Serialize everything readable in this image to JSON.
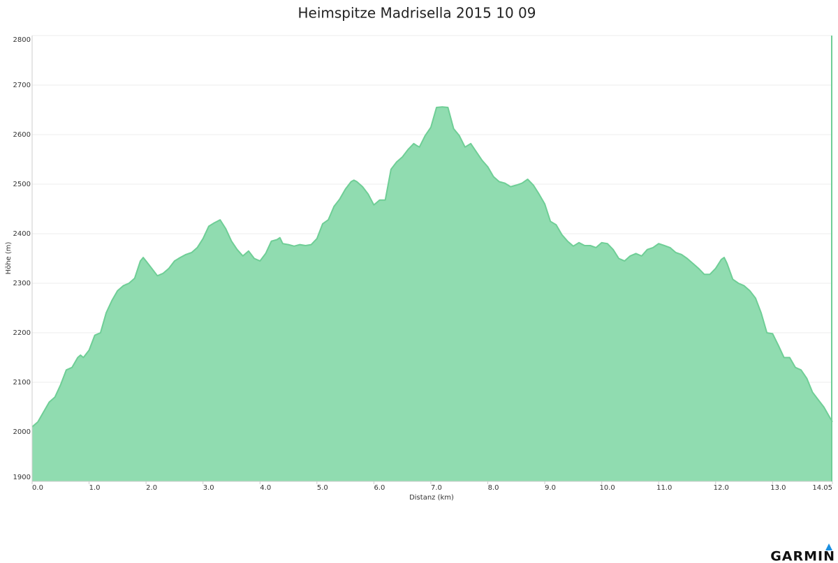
{
  "chart_data": {
    "type": "area",
    "title": "Heimspitze Madrisella 2015 10 09",
    "x_label": "Distanz   (km)",
    "y_label": "Höhe (m)",
    "color": "#90dcb0",
    "line_color": "#6fce96",
    "grid": true,
    "xlim": [
      0,
      14.05
    ],
    "ylim": [
      1900,
      2800
    ],
    "xticks": [
      {
        "value": 0,
        "label": "0.0"
      },
      {
        "value": 1,
        "label": "1.0"
      },
      {
        "value": 2,
        "label": "2.0"
      },
      {
        "value": 3,
        "label": "3.0"
      },
      {
        "value": 4,
        "label": "4.0"
      },
      {
        "value": 5,
        "label": "5.0"
      },
      {
        "value": 6,
        "label": "6.0"
      },
      {
        "value": 7,
        "label": "7.0"
      },
      {
        "value": 8,
        "label": "8.0"
      },
      {
        "value": 9,
        "label": "9.0"
      },
      {
        "value": 10,
        "label": "10.0"
      },
      {
        "value": 11,
        "label": "11.0"
      },
      {
        "value": 12,
        "label": "12.0"
      },
      {
        "value": 13,
        "label": "13.0"
      },
      14.05
    ],
    "yticks": [
      1900,
      2000,
      2100,
      2200,
      2300,
      2400,
      2500,
      2600,
      2700,
      2800
    ],
    "x": [
      0.0,
      0.1,
      0.2,
      0.3,
      0.4,
      0.5,
      0.6,
      0.7,
      0.8,
      0.85,
      0.9,
      1.0,
      1.1,
      1.2,
      1.3,
      1.4,
      1.5,
      1.6,
      1.7,
      1.8,
      1.9,
      1.95,
      2.0,
      2.1,
      2.2,
      2.3,
      2.4,
      2.5,
      2.6,
      2.7,
      2.8,
      2.9,
      3.0,
      3.1,
      3.2,
      3.3,
      3.4,
      3.5,
      3.6,
      3.7,
      3.8,
      3.9,
      4.0,
      4.1,
      4.2,
      4.3,
      4.35,
      4.4,
      4.5,
      4.6,
      4.7,
      4.8,
      4.9,
      5.0,
      5.1,
      5.2,
      5.3,
      5.4,
      5.5,
      5.6,
      5.65,
      5.7,
      5.8,
      5.9,
      6.0,
      6.1,
      6.2,
      6.3,
      6.4,
      6.5,
      6.6,
      6.7,
      6.75,
      6.8,
      6.9,
      7.0,
      7.1,
      7.2,
      7.3,
      7.4,
      7.5,
      7.6,
      7.7,
      7.8,
      7.9,
      8.0,
      8.1,
      8.2,
      8.3,
      8.4,
      8.5,
      8.6,
      8.7,
      8.8,
      8.9,
      9.0,
      9.1,
      9.2,
      9.3,
      9.4,
      9.5,
      9.6,
      9.7,
      9.8,
      9.9,
      10.0,
      10.1,
      10.2,
      10.3,
      10.4,
      10.5,
      10.6,
      10.7,
      10.8,
      10.9,
      11.0,
      11.1,
      11.2,
      11.3,
      11.4,
      11.5,
      11.6,
      11.7,
      11.8,
      11.9,
      12.0,
      12.1,
      12.15,
      12.2,
      12.3,
      12.4,
      12.5,
      12.6,
      12.7,
      12.8,
      12.9,
      13.0,
      13.1,
      13.2,
      13.3,
      13.4,
      13.5,
      13.6,
      13.7,
      13.8,
      13.9,
      14.0,
      14.05
    ],
    "values": [
      2010,
      2020,
      2040,
      2060,
      2070,
      2095,
      2125,
      2130,
      2150,
      2155,
      2150,
      2165,
      2195,
      2200,
      2240,
      2265,
      2285,
      2295,
      2300,
      2310,
      2345,
      2352,
      2345,
      2330,
      2315,
      2320,
      2330,
      2345,
      2352,
      2358,
      2362,
      2372,
      2390,
      2415,
      2422,
      2428,
      2410,
      2385,
      2368,
      2355,
      2365,
      2350,
      2345,
      2360,
      2385,
      2388,
      2392,
      2380,
      2378,
      2375,
      2378,
      2376,
      2378,
      2390,
      2420,
      2428,
      2455,
      2470,
      2490,
      2505,
      2508,
      2505,
      2495,
      2480,
      2458,
      2468,
      2468,
      2530,
      2545,
      2555,
      2570,
      2582,
      2578,
      2575,
      2598,
      2615,
      2655,
      2656,
      2655,
      2612,
      2598,
      2575,
      2582,
      2565,
      2548,
      2535,
      2515,
      2505,
      2502,
      2495,
      2498,
      2502,
      2510,
      2498,
      2480,
      2460,
      2425,
      2418,
      2398,
      2385,
      2375,
      2382,
      2376,
      2376,
      2372,
      2382,
      2380,
      2368,
      2350,
      2345,
      2355,
      2360,
      2355,
      2368,
      2372,
      2380,
      2376,
      2372,
      2362,
      2358,
      2350,
      2340,
      2330,
      2318,
      2318,
      2330,
      2348,
      2352,
      2340,
      2308,
      2300,
      2295,
      2285,
      2270,
      2240,
      2200,
      2198,
      2175,
      2150,
      2150,
      2130,
      2125,
      2108,
      2080,
      2065,
      2050,
      2030,
      2020
    ]
  },
  "logo_text": "GARMIN"
}
